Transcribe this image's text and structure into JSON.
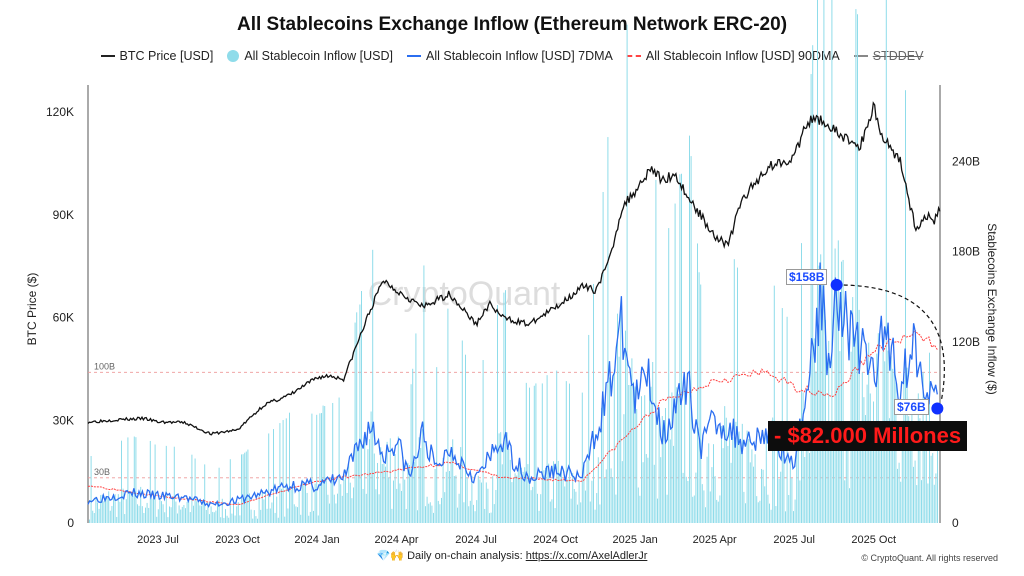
{
  "chart_data": {
    "type": "line",
    "title": "All Stablecoins Exchange Inflow (Ethereum Network ERC-20)",
    "legend": [
      {
        "label": "BTC Price [USD]",
        "color": "#111111"
      },
      {
        "label": "All Stablecoin Inflow [USD]",
        "color": "#8fdcea"
      },
      {
        "label": "All Stablecoin Inflow [USD] 7DMA",
        "color": "#2b6ef0"
      },
      {
        "label": "All Stablecoin Inflow [USD] 90DMA",
        "color": "#ff4444"
      },
      {
        "label": "STDDEV",
        "color": "#666666"
      }
    ],
    "x_unit": "months since 2023 Jul",
    "xlim": [
      -2.64,
      29.5
    ],
    "x_ticks": [
      {
        "m": 0,
        "label": "2023 Jul"
      },
      {
        "m": 3,
        "label": "2023 Oct"
      },
      {
        "m": 6,
        "label": "2024 Jan"
      },
      {
        "m": 9,
        "label": "2024 Apr"
      },
      {
        "m": 12,
        "label": "2024 Jul"
      },
      {
        "m": 15,
        "label": "2024 Oct"
      },
      {
        "m": 18,
        "label": "2025 Jan"
      },
      {
        "m": 21,
        "label": "2025 Apr"
      },
      {
        "m": 24,
        "label": "2025 Jul"
      },
      {
        "m": 27,
        "label": "2025 Oct"
      }
    ],
    "ylabel_left": "BTC Price ($)",
    "ylim_left": [
      0,
      125000
    ],
    "yticks_left": [
      {
        "v": 0,
        "label": "0"
      },
      {
        "v": 30000,
        "label": "30K"
      },
      {
        "v": 60000,
        "label": "60K"
      },
      {
        "v": 90000,
        "label": "90K"
      },
      {
        "v": 120000,
        "label": "120K"
      }
    ],
    "ylabel_right": "Stablecoins Exchange Inflow ($)",
    "ylim_right": [
      0,
      284
    ],
    "yticks_right": [
      {
        "v": 0,
        "label": "0"
      },
      {
        "v": 120,
        "label": "120B"
      },
      {
        "v": 180,
        "label": "180B"
      },
      {
        "v": 240,
        "label": "240B"
      }
    ],
    "ref_lines": [
      {
        "v": 100,
        "label": "100B"
      },
      {
        "v": 30,
        "label": "30B"
      }
    ],
    "btc": [
      [
        -2.64,
        29500
      ],
      [
        -1.5,
        30200
      ],
      [
        -0.5,
        30500
      ],
      [
        0,
        29500
      ],
      [
        1,
        29300
      ],
      [
        2,
        26000
      ],
      [
        3,
        27200
      ],
      [
        4,
        34500
      ],
      [
        5,
        37500
      ],
      [
        6,
        42500
      ],
      [
        6.5,
        43000
      ],
      [
        7,
        42000
      ],
      [
        7.5,
        52000
      ],
      [
        8,
        62000
      ],
      [
        8.5,
        71000
      ],
      [
        9,
        68000
      ],
      [
        10,
        63000
      ],
      [
        11,
        67000
      ],
      [
        12,
        58000
      ],
      [
        12.5,
        64000
      ],
      [
        13,
        60000
      ],
      [
        14,
        58000
      ],
      [
        15,
        63000
      ],
      [
        16,
        69000
      ],
      [
        16.5,
        68000
      ],
      [
        17,
        76000
      ],
      [
        17.5,
        92000
      ],
      [
        18,
        97000
      ],
      [
        18.6,
        104000
      ],
      [
        19,
        100000
      ],
      [
        19.5,
        102000
      ],
      [
        20,
        95000
      ],
      [
        21,
        84000
      ],
      [
        21.5,
        81000
      ],
      [
        22,
        94000
      ],
      [
        23,
        104000
      ],
      [
        24,
        107000
      ],
      [
        24.5,
        117000
      ],
      [
        25,
        118000
      ],
      [
        25.6,
        114000
      ],
      [
        26,
        112000
      ],
      [
        26.5,
        110000
      ],
      [
        27,
        122000
      ],
      [
        27.3,
        113000
      ],
      [
        28,
        106000
      ],
      [
        28.6,
        85000
      ],
      [
        29,
        90000
      ],
      [
        29.3,
        88000
      ],
      [
        29.5,
        92000
      ]
    ],
    "ma7": [
      [
        -2.64,
        15
      ],
      [
        -1,
        20
      ],
      [
        0,
        18
      ],
      [
        1,
        17
      ],
      [
        2,
        12
      ],
      [
        3,
        15
      ],
      [
        4,
        20
      ],
      [
        5,
        25
      ],
      [
        6,
        25
      ],
      [
        7,
        30
      ],
      [
        8,
        65
      ],
      [
        8.5,
        45
      ],
      [
        9,
        55
      ],
      [
        9.5,
        30
      ],
      [
        10,
        60
      ],
      [
        10.5,
        35
      ],
      [
        11,
        50
      ],
      [
        12,
        30
      ],
      [
        13,
        55
      ],
      [
        13.5,
        40
      ],
      [
        14,
        30
      ],
      [
        15,
        35
      ],
      [
        16,
        30
      ],
      [
        16.5,
        60
      ],
      [
        17,
        90
      ],
      [
        17.5,
        130
      ],
      [
        18,
        80
      ],
      [
        18.5,
        100
      ],
      [
        19,
        60
      ],
      [
        20,
        90
      ],
      [
        20.5,
        50
      ],
      [
        21,
        70
      ],
      [
        22,
        55
      ],
      [
        23,
        60
      ],
      [
        24,
        40
      ],
      [
        24.5,
        90
      ],
      [
        25,
        150
      ],
      [
        25.3,
        110
      ],
      [
        25.6,
        158
      ],
      [
        26,
        130
      ],
      [
        27,
        100
      ],
      [
        27.5,
        130
      ],
      [
        28,
        90
      ],
      [
        28.5,
        120
      ],
      [
        29,
        95
      ],
      [
        29.4,
        76
      ]
    ],
    "ma90": [
      [
        -2.64,
        25
      ],
      [
        0,
        18
      ],
      [
        3,
        12
      ],
      [
        6,
        28
      ],
      [
        9,
        35
      ],
      [
        11,
        40
      ],
      [
        13,
        30
      ],
      [
        16,
        28
      ],
      [
        17.5,
        55
      ],
      [
        19,
        80
      ],
      [
        21,
        95
      ],
      [
        23,
        100
      ],
      [
        24,
        90
      ],
      [
        25.5,
        85
      ],
      [
        27,
        115
      ],
      [
        28.5,
        125
      ],
      [
        29.4,
        118
      ]
    ],
    "annotations": {
      "peak": {
        "m": 25.6,
        "v": 158,
        "label": "$158B"
      },
      "current": {
        "m": 29.4,
        "v": 76,
        "label": "$76B"
      },
      "callout": "- $82.000 Millones"
    },
    "watermark": "CryptoQuant"
  },
  "footer": {
    "text": "💎🙌 Daily on-chain analysis: ",
    "link": "https://x.com/AxelAdlerJr",
    "copyright": "© CryptoQuant. All rights reserved"
  }
}
